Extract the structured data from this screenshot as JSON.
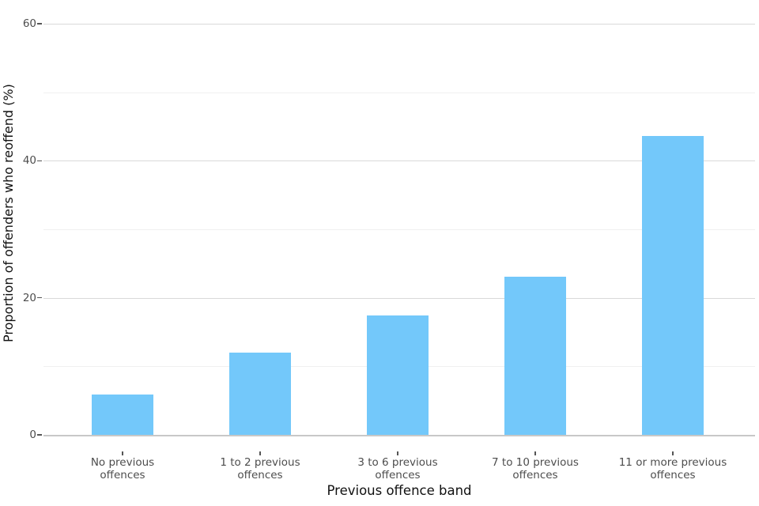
{
  "chart_data": {
    "type": "bar",
    "title": "",
    "xlabel": "Previous offence band",
    "ylabel": "Proportion of offenders who reoffend (%)",
    "categories": [
      "No previous\noffences",
      "1 to 2 previous\noffences",
      "3 to 6 previous\noffences",
      "7 to 10 previous\noffences",
      "11 or more previous\noffences"
    ],
    "values": [
      5.9,
      12.0,
      17.4,
      23.1,
      43.6
    ],
    "ylim": [
      0,
      60
    ],
    "yticks": [
      0,
      20,
      40,
      60
    ],
    "yticks_minor": [
      10,
      30,
      50
    ],
    "grid": "horizontal-only",
    "legend": "none",
    "colors": {
      "bar": "#73c8fa",
      "grid_major": "#d9d9d9",
      "grid_minor": "#f0f0f0",
      "axis_line": "#c8c8c8",
      "tick_text": "#4d4d4d",
      "axis_title_text": "#111111",
      "background": "#ffffff"
    }
  }
}
